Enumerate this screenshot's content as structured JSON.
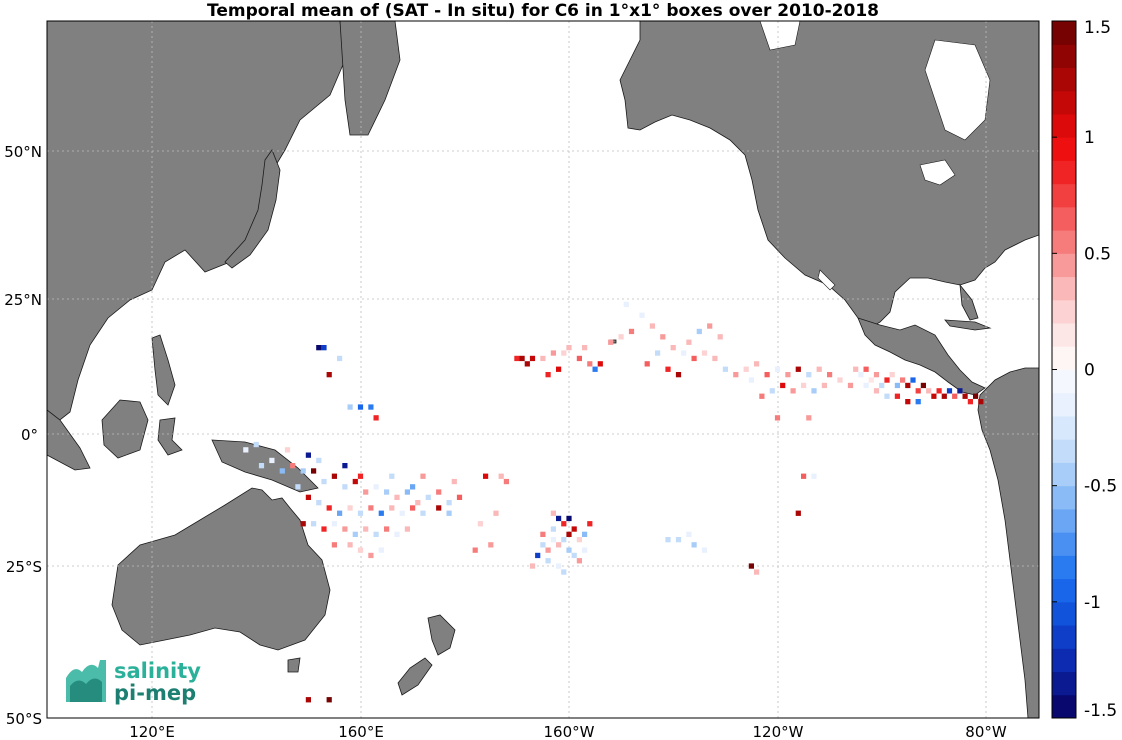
{
  "title": "Temporal mean of (SAT - In situ) for C6 in 1°x1° boxes over 2010-2018",
  "map": {
    "lon_range": [
      100,
      -70
    ],
    "lat_range": [
      -50,
      70
    ],
    "grid": true,
    "background": "#ffffff",
    "land_color": "#808080",
    "coast_color": "#000000"
  },
  "lat_ticks": [
    {
      "value": 50,
      "label": "50°N"
    },
    {
      "value": 25,
      "label": "25°N"
    },
    {
      "value": 0,
      "label": "0°"
    },
    {
      "value": -25,
      "label": "25°S"
    },
    {
      "value": -50,
      "label": "50°S"
    }
  ],
  "lon_ticks": [
    {
      "value": 120,
      "label": "120°E"
    },
    {
      "value": 160,
      "label": "160°E"
    },
    {
      "value": -160,
      "label": "160°W"
    },
    {
      "value": -120,
      "label": "120°W"
    },
    {
      "value": -80,
      "label": "80°W"
    }
  ],
  "colorbar": {
    "min": -1.5,
    "max": 1.5,
    "steps": 30,
    "ticks": [
      {
        "value": 1.5,
        "label": "1.5"
      },
      {
        "value": 1,
        "label": "1"
      },
      {
        "value": 0.5,
        "label": "0.5"
      },
      {
        "value": 0,
        "label": "0"
      },
      {
        "value": -0.5,
        "label": "-0.5"
      },
      {
        "value": -1,
        "label": "-1"
      },
      {
        "value": -1.5,
        "label": "-1.5"
      }
    ],
    "colors": [
      "#08086e",
      "#0b1a90",
      "#0d2bb0",
      "#0f3fc8",
      "#1253dc",
      "#1a66ea",
      "#2a7af0",
      "#4a90f2",
      "#6aa6f4",
      "#8abbf6",
      "#a8cdf8",
      "#c2dcfa",
      "#d8e8fc",
      "#e8f1fd",
      "#f4f8fe",
      "#fef5f5",
      "#fde6e6",
      "#fcd2d2",
      "#fab8b8",
      "#f89a9a",
      "#f67c7c",
      "#f45e5e",
      "#f24040",
      "#f02424",
      "#ee1010",
      "#dc0a0a",
      "#c40808",
      "#aa0606",
      "#900404",
      "#760202"
    ]
  },
  "chart_data": {
    "type": "heatmap",
    "title": "Temporal mean of (SAT - In situ) for C6 in 1°x1° boxes over 2010-2018",
    "units": "",
    "cells": [
      {
        "lon": -105,
        "lat": 12,
        "v": 0.3
      },
      {
        "lon": -104,
        "lat": 11,
        "v": -0.2
      },
      {
        "lon": -103,
        "lat": 12,
        "v": 0.6
      },
      {
        "lon": -102,
        "lat": 10,
        "v": 0.1
      },
      {
        "lon": -101,
        "lat": 11,
        "v": 0.4
      },
      {
        "lon": -100,
        "lat": 9,
        "v": -0.3
      },
      {
        "lon": -99,
        "lat": 10,
        "v": 0.8
      },
      {
        "lon": -98,
        "lat": 11,
        "v": 0.2
      },
      {
        "lon": -97,
        "lat": 9,
        "v": -0.6
      },
      {
        "lon": -96,
        "lat": 10,
        "v": 0.5
      },
      {
        "lon": -95,
        "lat": 9,
        "v": 1.2
      },
      {
        "lon": -94,
        "lat": 10,
        "v": -0.9
      },
      {
        "lon": -93,
        "lat": 8,
        "v": 0.7
      },
      {
        "lon": -92,
        "lat": 9,
        "v": 1.4
      },
      {
        "lon": -91,
        "lat": 8,
        "v": 0.3
      },
      {
        "lon": -90,
        "lat": 7,
        "v": 1.1
      },
      {
        "lon": -89,
        "lat": 8,
        "v": 0.9
      },
      {
        "lon": -88,
        "lat": 7,
        "v": 1.3
      },
      {
        "lon": -87,
        "lat": 8,
        "v": -1.2
      },
      {
        "lon": -86,
        "lat": 7,
        "v": 0.6
      },
      {
        "lon": -85,
        "lat": 8,
        "v": -1.4
      },
      {
        "lon": -84,
        "lat": 7,
        "v": 1.2
      },
      {
        "lon": -83,
        "lat": 6,
        "v": 0.8
      },
      {
        "lon": -82,
        "lat": 7,
        "v": 1.5
      },
      {
        "lon": -81,
        "lat": 6,
        "v": 1.3
      },
      {
        "lon": -95,
        "lat": 6,
        "v": 1.1
      },
      {
        "lon": -93,
        "lat": 6,
        "v": -0.8
      },
      {
        "lon": -97,
        "lat": 7,
        "v": 0.9
      },
      {
        "lon": -99,
        "lat": 7,
        "v": -0.4
      },
      {
        "lon": -101,
        "lat": 8,
        "v": 0.3
      },
      {
        "lon": -103,
        "lat": 9,
        "v": -0.2
      },
      {
        "lon": -106,
        "lat": 9,
        "v": 0.4
      },
      {
        "lon": -108,
        "lat": 10,
        "v": 0.2
      },
      {
        "lon": -110,
        "lat": 11,
        "v": 0.5
      },
      {
        "lon": -112,
        "lat": 12,
        "v": 0.3
      },
      {
        "lon": -114,
        "lat": 11,
        "v": -0.3
      },
      {
        "lon": -116,
        "lat": 12,
        "v": 1.2
      },
      {
        "lon": -118,
        "lat": 11,
        "v": 0.4
      },
      {
        "lon": -120,
        "lat": 12,
        "v": -0.2
      },
      {
        "lon": -122,
        "lat": 11,
        "v": 0.6
      },
      {
        "lon": -124,
        "lat": 13,
        "v": 0.3
      },
      {
        "lon": -126,
        "lat": 12,
        "v": 0.2
      },
      {
        "lon": -119,
        "lat": 9,
        "v": 1.0
      },
      {
        "lon": -121,
        "lat": 8,
        "v": -0.3
      },
      {
        "lon": -117,
        "lat": 8,
        "v": 0.4
      },
      {
        "lon": -115,
        "lat": 9,
        "v": 0.2
      },
      {
        "lon": -113,
        "lat": 8,
        "v": -0.5
      },
      {
        "lon": -111,
        "lat": 9,
        "v": 0.3
      },
      {
        "lon": -123,
        "lat": 7,
        "v": 0.5
      },
      {
        "lon": -125,
        "lat": 10,
        "v": -0.2
      },
      {
        "lon": -128,
        "lat": 11,
        "v": 0.4
      },
      {
        "lon": -130,
        "lat": 12,
        "v": -0.3
      },
      {
        "lon": -132,
        "lat": 14,
        "v": 0.3
      },
      {
        "lon": -134,
        "lat": 15,
        "v": 0.2
      },
      {
        "lon": -136,
        "lat": 14,
        "v": 0.6
      },
      {
        "lon": -138,
        "lat": 15,
        "v": -0.2
      },
      {
        "lon": -140,
        "lat": 16,
        "v": 0.3
      },
      {
        "lon": -142,
        "lat": 18,
        "v": 0.4
      },
      {
        "lon": -144,
        "lat": 20,
        "v": 0.3
      },
      {
        "lon": -146,
        "lat": 22,
        "v": -0.2
      },
      {
        "lon": -148,
        "lat": 19,
        "v": 0.5
      },
      {
        "lon": -150,
        "lat": 18,
        "v": 0.2
      },
      {
        "lon": -152,
        "lat": 17,
        "v": 0.4
      },
      {
        "lon": -154,
        "lat": 13,
        "v": 1.0
      },
      {
        "lon": -155,
        "lat": 12,
        "v": -0.8
      },
      {
        "lon": -157,
        "lat": 16,
        "v": 0.3
      },
      {
        "lon": -145,
        "lat": 13,
        "v": 0.6
      },
      {
        "lon": -143,
        "lat": 15,
        "v": -0.3
      },
      {
        "lon": -141,
        "lat": 12,
        "v": 0.8
      },
      {
        "lon": -139,
        "lat": 11,
        "v": 1.2
      },
      {
        "lon": -137,
        "lat": 17,
        "v": 0.3
      },
      {
        "lon": -135,
        "lat": 19,
        "v": -0.5
      },
      {
        "lon": -149,
        "lat": 24,
        "v": -0.2
      },
      {
        "lon": -133,
        "lat": 20,
        "v": 0.4
      },
      {
        "lon": -131,
        "lat": 18,
        "v": 0.3
      },
      {
        "lon": -160,
        "lat": 16,
        "v": 0.3
      },
      {
        "lon": -161,
        "lat": 15,
        "v": 0.2
      },
      {
        "lon": -163,
        "lat": 15,
        "v": 0.4
      },
      {
        "lon": -165,
        "lat": 14,
        "v": 0.3
      },
      {
        "lon": -167,
        "lat": 14,
        "v": 1.1
      },
      {
        "lon": -169,
        "lat": 14,
        "v": 1.3
      },
      {
        "lon": -170,
        "lat": 14,
        "v": 0.9
      },
      {
        "lon": -168,
        "lat": 13,
        "v": 1.2
      },
      {
        "lon": -162,
        "lat": 12,
        "v": 1.0
      },
      {
        "lon": -158,
        "lat": 14,
        "v": 0.6
      },
      {
        "lon": -164,
        "lat": 11,
        "v": 0.9
      },
      {
        "lon": -156,
        "lat": 13,
        "v": 0.5
      },
      {
        "lon": -176,
        "lat": -8,
        "v": 1.0
      },
      {
        "lon": -173,
        "lat": -8,
        "v": 0.3
      },
      {
        "lon": -172,
        "lat": -9,
        "v": 0.5
      },
      {
        "lon": -174,
        "lat": -15,
        "v": 0.3
      },
      {
        "lon": -177,
        "lat": -17,
        "v": 0.2
      },
      {
        "lon": -175,
        "lat": -21,
        "v": 0.4
      },
      {
        "lon": -178,
        "lat": -22,
        "v": 0.5
      },
      {
        "lon": -163,
        "lat": -15,
        "v": 0.3
      },
      {
        "lon": -162,
        "lat": -16,
        "v": -1.4
      },
      {
        "lon": -161,
        "lat": -17,
        "v": 0.8
      },
      {
        "lon": -160,
        "lat": -16,
        "v": -1.5
      },
      {
        "lon": -159,
        "lat": -18,
        "v": 1.1
      },
      {
        "lon": -160,
        "lat": -19,
        "v": 1.3
      },
      {
        "lon": -161,
        "lat": -20,
        "v": -0.4
      },
      {
        "lon": -162,
        "lat": -21,
        "v": 0.3
      },
      {
        "lon": -163,
        "lat": -20,
        "v": -0.2
      },
      {
        "lon": -164,
        "lat": -22,
        "v": 0.4
      },
      {
        "lon": -165,
        "lat": -21,
        "v": -0.3
      },
      {
        "lon": -166,
        "lat": -23,
        "v": -1.2
      },
      {
        "lon": -164,
        "lat": -24,
        "v": -0.3
      },
      {
        "lon": -162,
        "lat": -25,
        "v": -0.2
      },
      {
        "lon": -160,
        "lat": -22,
        "v": -0.5
      },
      {
        "lon": -158,
        "lat": -20,
        "v": 0.2
      },
      {
        "lon": -157,
        "lat": -19,
        "v": -0.6
      },
      {
        "lon": -156,
        "lat": -17,
        "v": 0.9
      },
      {
        "lon": -159,
        "lat": -23,
        "v": -0.4
      },
      {
        "lon": -163,
        "lat": -18,
        "v": -0.3
      },
      {
        "lon": -165,
        "lat": -19,
        "v": 0.5
      },
      {
        "lon": -167,
        "lat": -25,
        "v": 0.3
      },
      {
        "lon": -161,
        "lat": -26,
        "v": -0.3
      },
      {
        "lon": -158,
        "lat": -24,
        "v": 0.4
      },
      {
        "lon": -157,
        "lat": -22,
        "v": -0.2
      },
      {
        "lon": -141,
        "lat": -20,
        "v": -0.4
      },
      {
        "lon": -139,
        "lat": -20,
        "v": -0.3
      },
      {
        "lon": -137,
        "lat": -19,
        "v": -0.2
      },
      {
        "lon": -136,
        "lat": -21,
        "v": -0.5
      },
      {
        "lon": -134,
        "lat": -22,
        "v": -0.2
      },
      {
        "lon": -125,
        "lat": -25,
        "v": 1.4
      },
      {
        "lon": -124,
        "lat": -26,
        "v": 0.3
      },
      {
        "lon": -116,
        "lat": -15,
        "v": 1.3
      },
      {
        "lon": -113,
        "lat": -8,
        "v": -0.2
      },
      {
        "lon": -115,
        "lat": -8,
        "v": 0.6
      },
      {
        "lon": -120,
        "lat": 3,
        "v": 0.5
      },
      {
        "lon": -114,
        "lat": 3,
        "v": 0.4
      },
      {
        "lon": 152,
        "lat": 16,
        "v": -1.5
      },
      {
        "lon": 153,
        "lat": 16,
        "v": -1.2
      },
      {
        "lon": 156,
        "lat": 14,
        "v": -0.4
      },
      {
        "lon": 154,
        "lat": 11,
        "v": 1.2
      },
      {
        "lon": 158,
        "lat": 5,
        "v": -0.5
      },
      {
        "lon": 160,
        "lat": 5,
        "v": -1.0
      },
      {
        "lon": 162,
        "lat": 5,
        "v": -0.8
      },
      {
        "lon": 163,
        "lat": 3,
        "v": 0.8
      },
      {
        "lon": 138,
        "lat": -3,
        "v": -0.2
      },
      {
        "lon": 140,
        "lat": -2,
        "v": -0.3
      },
      {
        "lon": 141,
        "lat": -6,
        "v": -0.4
      },
      {
        "lon": 143,
        "lat": -5,
        "v": -0.2
      },
      {
        "lon": 145,
        "lat": -7,
        "v": -0.6
      },
      {
        "lon": 147,
        "lat": -6,
        "v": 0.5
      },
      {
        "lon": 149,
        "lat": -7,
        "v": -0.5
      },
      {
        "lon": 151,
        "lat": -7,
        "v": 1.4
      },
      {
        "lon": 153,
        "lat": -9,
        "v": -0.4
      },
      {
        "lon": 155,
        "lat": -8,
        "v": 1.2
      },
      {
        "lon": 157,
        "lat": -10,
        "v": -0.3
      },
      {
        "lon": 159,
        "lat": -9,
        "v": 1.1
      },
      {
        "lon": 161,
        "lat": -11,
        "v": 0.4
      },
      {
        "lon": 163,
        "lat": -10,
        "v": -0.2
      },
      {
        "lon": 165,
        "lat": -11,
        "v": -0.5
      },
      {
        "lon": 167,
        "lat": -12,
        "v": 0.3
      },
      {
        "lon": 169,
        "lat": -11,
        "v": -0.6
      },
      {
        "lon": 171,
        "lat": -13,
        "v": 0.3
      },
      {
        "lon": 173,
        "lat": -12,
        "v": -0.4
      },
      {
        "lon": 175,
        "lat": -11,
        "v": 0.5
      },
      {
        "lon": 177,
        "lat": -13,
        "v": -0.3
      },
      {
        "lon": 179,
        "lat": -12,
        "v": 0.6
      },
      {
        "lon": 150,
        "lat": -12,
        "v": 1.1
      },
      {
        "lon": 152,
        "lat": -13,
        "v": -0.4
      },
      {
        "lon": 154,
        "lat": -14,
        "v": 0.9
      },
      {
        "lon": 156,
        "lat": -15,
        "v": -0.7
      },
      {
        "lon": 158,
        "lat": -14,
        "v": 0.2
      },
      {
        "lon": 160,
        "lat": -15,
        "v": -0.3
      },
      {
        "lon": 162,
        "lat": -14,
        "v": 0.5
      },
      {
        "lon": 164,
        "lat": -15,
        "v": -0.8
      },
      {
        "lon": 166,
        "lat": -14,
        "v": 0.3
      },
      {
        "lon": 168,
        "lat": -15,
        "v": -0.2
      },
      {
        "lon": 170,
        "lat": -14,
        "v": 0.6
      },
      {
        "lon": 172,
        "lat": -15,
        "v": -0.3
      },
      {
        "lon": 175,
        "lat": -14,
        "v": 1.3
      },
      {
        "lon": 177,
        "lat": -15,
        "v": -0.5
      },
      {
        "lon": 149,
        "lat": -17,
        "v": 1.2
      },
      {
        "lon": 151,
        "lat": -17,
        "v": -0.4
      },
      {
        "lon": 153,
        "lat": -18,
        "v": 0.8
      },
      {
        "lon": 155,
        "lat": -17,
        "v": -0.2
      },
      {
        "lon": 157,
        "lat": -18,
        "v": 0.4
      },
      {
        "lon": 159,
        "lat": -19,
        "v": -0.5
      },
      {
        "lon": 161,
        "lat": -18,
        "v": 0.3
      },
      {
        "lon": 163,
        "lat": -19,
        "v": -0.3
      },
      {
        "lon": 165,
        "lat": -18,
        "v": 0.5
      },
      {
        "lon": 167,
        "lat": -19,
        "v": -0.2
      },
      {
        "lon": 169,
        "lat": -18,
        "v": 0.3
      },
      {
        "lon": 158,
        "lat": -21,
        "v": 0.3
      },
      {
        "lon": 160,
        "lat": -22,
        "v": 0.2
      },
      {
        "lon": 162,
        "lat": -23,
        "v": 0.4
      },
      {
        "lon": 164,
        "lat": -22,
        "v": -0.2
      },
      {
        "lon": 155,
        "lat": -21,
        "v": 0.5
      },
      {
        "lon": 148,
        "lat": -10,
        "v": -0.3
      },
      {
        "lon": 152,
        "lat": -5,
        "v": -0.4
      },
      {
        "lon": 146,
        "lat": -3,
        "v": 0.2
      },
      {
        "lon": 150,
        "lat": -4,
        "v": -1.3
      },
      {
        "lon": 157,
        "lat": -6,
        "v": -1.4
      },
      {
        "lon": 160,
        "lat": -8,
        "v": 0.9
      },
      {
        "lon": 166,
        "lat": -8,
        "v": -0.3
      },
      {
        "lon": 178,
        "lat": -9,
        "v": 0.3
      },
      {
        "lon": 170,
        "lat": -10,
        "v": -0.7
      },
      {
        "lon": 172,
        "lat": -8,
        "v": 0.4
      },
      {
        "lon": 150,
        "lat": -47,
        "v": 1.3
      },
      {
        "lon": 154,
        "lat": -47,
        "v": 1.4
      }
    ]
  },
  "logo": {
    "line1": "salinity",
    "line2": "pi-mep",
    "color1": "#2bb09a",
    "color2": "#1d7f72"
  }
}
